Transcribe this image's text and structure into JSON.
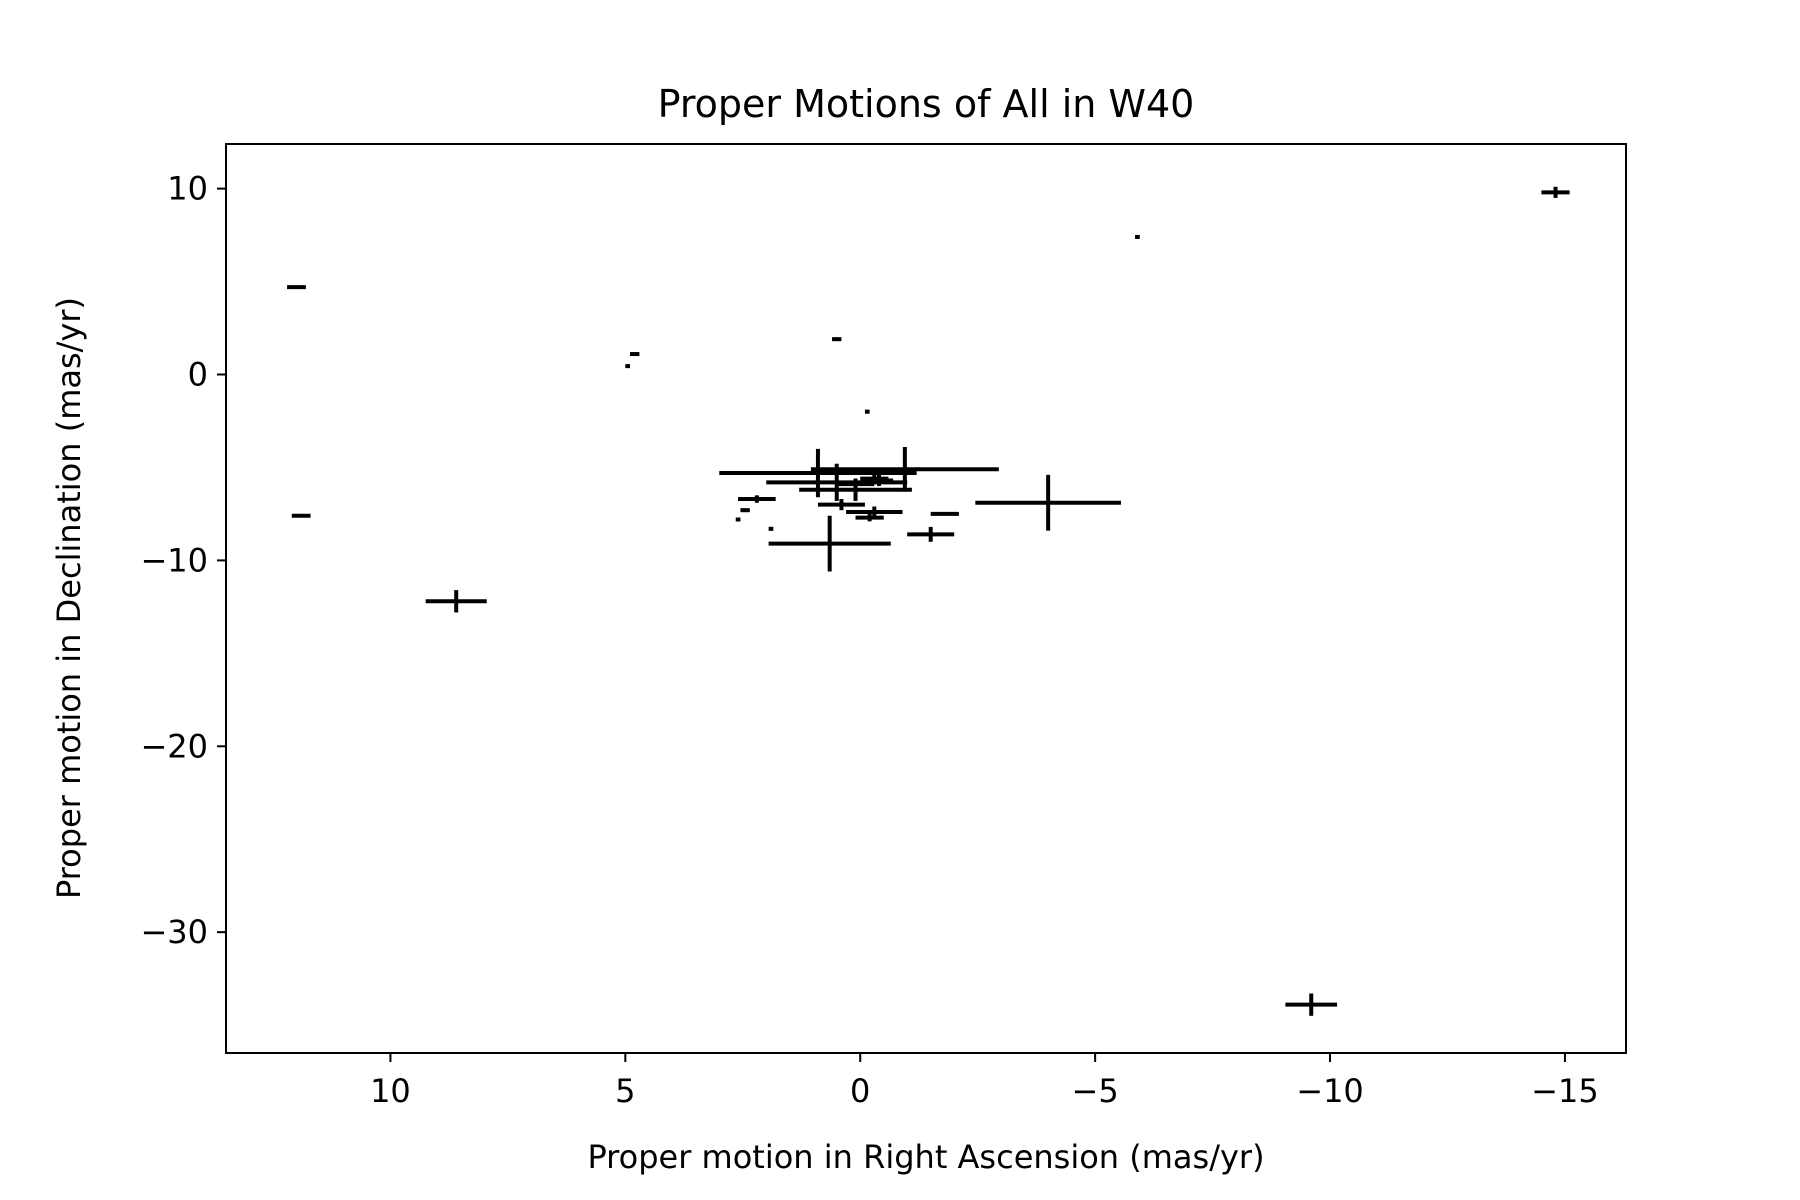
{
  "chart_data": {
    "type": "scatter",
    "title": "Proper Motions of All in W40",
    "xlabel": "Proper motion in Right Ascension (mas/yr)",
    "ylabel": "Proper motion in Declination (mas/yr)",
    "xlim": [
      13.5,
      -16.3
    ],
    "ylim": [
      -36.5,
      12.4
    ],
    "x_inverted": true,
    "xticks": [
      10,
      5,
      0,
      -5,
      -10,
      -15
    ],
    "xtick_labels": [
      "10",
      "5",
      "0",
      "−5",
      "−10",
      "−15"
    ],
    "yticks": [
      10,
      0,
      -10,
      -20,
      -30
    ],
    "ytick_labels": [
      "10",
      "0",
      "−10",
      "−20",
      "−30"
    ],
    "grid": false,
    "marker": "none",
    "error_bar_color": "#000000",
    "points": [
      {
        "x": -14.8,
        "y": 9.8,
        "xerr": 0.3,
        "yerr": 0.3
      },
      {
        "x": -5.9,
        "y": 7.4,
        "xerr": 0.05,
        "yerr": 0.1
      },
      {
        "x": 12.0,
        "y": 4.7,
        "xerr": 0.2,
        "yerr": 0.05
      },
      {
        "x": 0.5,
        "y": 1.9,
        "xerr": 0.1,
        "yerr": 0.1
      },
      {
        "x": 4.8,
        "y": 1.1,
        "xerr": 0.1,
        "yerr": 0.05
      },
      {
        "x": 4.95,
        "y": 0.45,
        "xerr": 0.05,
        "yerr": 0.1
      },
      {
        "x": -0.15,
        "y": -2.0,
        "xerr": 0.05,
        "yerr": 0.1
      },
      {
        "x": 11.9,
        "y": -7.6,
        "xerr": 0.2,
        "yerr": 0.05
      },
      {
        "x": -0.95,
        "y": -5.1,
        "xerr": 2.0,
        "yerr": 1.2
      },
      {
        "x": 0.9,
        "y": -5.3,
        "xerr": 2.1,
        "yerr": 1.3
      },
      {
        "x": 0.5,
        "y": -5.8,
        "xerr": 1.5,
        "yerr": 1.0
      },
      {
        "x": -0.4,
        "y": -5.7,
        "xerr": 0.3,
        "yerr": 0.3
      },
      {
        "x": 0.1,
        "y": -6.2,
        "xerr": 1.2,
        "yerr": 0.6
      },
      {
        "x": 0.1,
        "y": -5.9,
        "xerr": 0.4,
        "yerr": 0.3
      },
      {
        "x": -0.3,
        "y": -5.6,
        "xerr": 0.3,
        "yerr": 0.2
      },
      {
        "x": 0.4,
        "y": -7.0,
        "xerr": 0.5,
        "yerr": 0.3
      },
      {
        "x": -0.3,
        "y": -7.4,
        "xerr": 0.6,
        "yerr": 0.3
      },
      {
        "x": -0.2,
        "y": -7.7,
        "xerr": 0.3,
        "yerr": 0.2
      },
      {
        "x": 2.2,
        "y": -6.7,
        "xerr": 0.4,
        "yerr": 0.2
      },
      {
        "x": 2.45,
        "y": -7.3,
        "xerr": 0.1,
        "yerr": 0.1
      },
      {
        "x": 2.6,
        "y": -7.8,
        "xerr": 0.05,
        "yerr": 0.1
      },
      {
        "x": 1.9,
        "y": -8.3,
        "xerr": 0.05,
        "yerr": 0.1
      },
      {
        "x": -1.8,
        "y": -7.5,
        "xerr": 0.3,
        "yerr": 0.05
      },
      {
        "x": -1.5,
        "y": -8.6,
        "xerr": 0.5,
        "yerr": 0.4
      },
      {
        "x": 0.65,
        "y": -9.1,
        "xerr": 1.3,
        "yerr": 1.5
      },
      {
        "x": -4.0,
        "y": -6.9,
        "xerr": 1.55,
        "yerr": 1.5
      },
      {
        "x": 8.6,
        "y": -12.2,
        "xerr": 0.65,
        "yerr": 0.6
      },
      {
        "x": -9.6,
        "y": -33.9,
        "xerr": 0.55,
        "yerr": 0.6
      }
    ]
  }
}
